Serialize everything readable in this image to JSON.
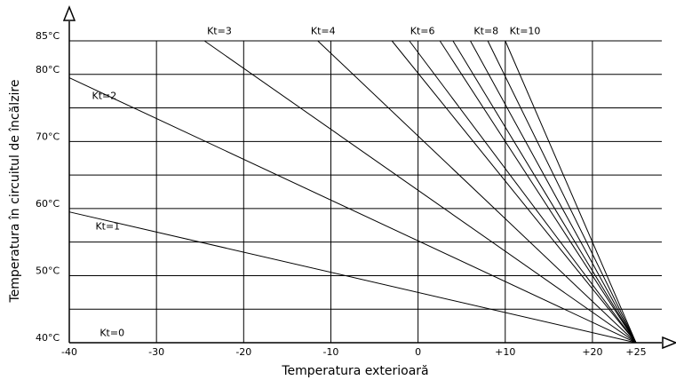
{
  "chart_data": {
    "type": "line",
    "title": "",
    "xlabel": "Temperatura exterioară",
    "ylabel": "Temperatura în circuitul de încălzire",
    "xlim": [
      -40,
      25
    ],
    "ylim": [
      40,
      85
    ],
    "x_ticks": [
      {
        "value": -40,
        "label": "-40"
      },
      {
        "value": -30,
        "label": "-30"
      },
      {
        "value": -20,
        "label": "-20"
      },
      {
        "value": -10,
        "label": "-10"
      },
      {
        "value": 0,
        "label": "0"
      },
      {
        "value": 10,
        "label": "+10"
      },
      {
        "value": 20,
        "label": "+20"
      },
      {
        "value": 25,
        "label": "+25"
      }
    ],
    "y_ticks": [
      {
        "value": 40,
        "label": "40°C"
      },
      {
        "value": 50,
        "label": "50°C"
      },
      {
        "value": 60,
        "label": "60°C"
      },
      {
        "value": 70,
        "label": "70°C"
      },
      {
        "value": 80,
        "label": "80°C"
      },
      {
        "value": 85,
        "label": "85°C"
      }
    ],
    "grid_y": [
      45,
      50,
      55,
      60,
      65,
      70,
      75,
      80,
      85
    ],
    "grid_x": [
      -30,
      -20,
      -10,
      0,
      10,
      20
    ],
    "grid": true,
    "series": [
      {
        "name": "Kt=0",
        "points": [
          [
            -40,
            40
          ],
          [
            25,
            40
          ]
        ],
        "label_at": [
          -36.5,
          41
        ]
      },
      {
        "name": "Kt=1",
        "points": [
          [
            -40,
            59.5
          ],
          [
            25,
            40
          ]
        ],
        "label_at": [
          -37,
          56.9
        ]
      },
      {
        "name": "Kt=2",
        "points": [
          [
            -40,
            79.5
          ],
          [
            25,
            40
          ]
        ],
        "label_at": [
          -37.4,
          76.3
        ]
      },
      {
        "name": "Kt=3",
        "points": [
          [
            -24.5,
            85
          ],
          [
            25,
            40
          ]
        ],
        "label_at": [
          -24.2,
          86
        ]
      },
      {
        "name": "Kt=4",
        "points": [
          [
            -11.5,
            85
          ],
          [
            25,
            40
          ]
        ],
        "label_at": [
          -12.3,
          86
        ]
      },
      {
        "name": "Kt=6",
        "points": [
          [
            -3,
            85
          ],
          [
            25,
            40
          ]
        ],
        "label_at": [
          -0.9,
          86
        ]
      },
      {
        "name": "Kt=8",
        "points": [
          [
            2.5,
            85
          ],
          [
            25,
            40
          ]
        ],
        "label_at": [
          6.4,
          86
        ]
      },
      {
        "name": "Kt=10",
        "points": [
          [
            10,
            85
          ],
          [
            25,
            40
          ]
        ],
        "label_at": [
          10.5,
          86
        ]
      },
      {
        "points": [
          [
            -1,
            85
          ],
          [
            25,
            40
          ]
        ]
      },
      {
        "points": [
          [
            4,
            85
          ],
          [
            25,
            40
          ]
        ]
      },
      {
        "points": [
          [
            6,
            85
          ],
          [
            25,
            40
          ]
        ]
      },
      {
        "points": [
          [
            8,
            85
          ],
          [
            25,
            40
          ]
        ]
      }
    ]
  }
}
